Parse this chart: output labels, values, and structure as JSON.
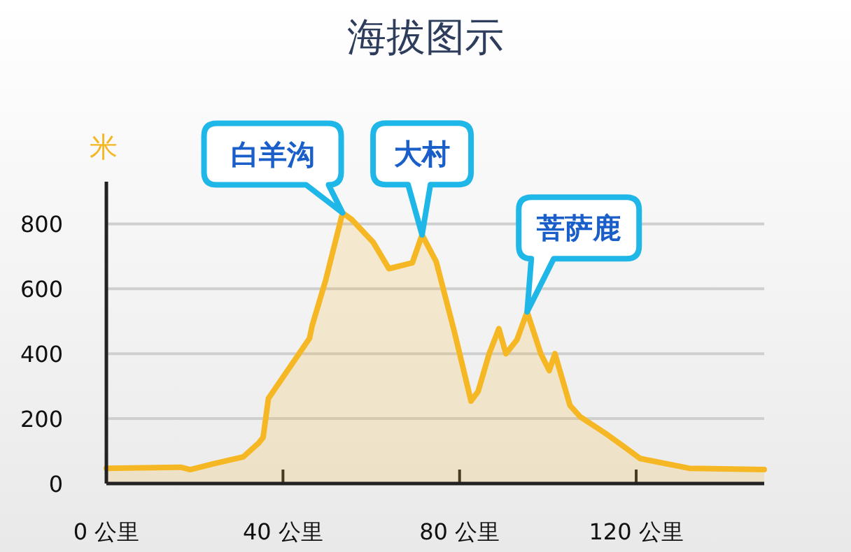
{
  "chart_data": {
    "type": "area",
    "title": "海拔图示",
    "ylabel": "米",
    "x": [
      0,
      17,
      19,
      24,
      31,
      34.5,
      35.5,
      36.7,
      46,
      46.6,
      49.7,
      53.5,
      55.6,
      60.4,
      64,
      69.3,
      71.5,
      74.7,
      78.8,
      82.6,
      84.2,
      86.7,
      88.9,
      90.5,
      93,
      95.3,
      98.4,
      100.3,
      101.6,
      105,
      107.3,
      113,
      117.4,
      120.9,
      132,
      149
    ],
    "series": [
      {
        "color": "#f5b824",
        "values": [
          47,
          50,
          43,
          60,
          82,
          125,
          142,
          262,
          447,
          486,
          628,
          834,
          813,
          744,
          662,
          680,
          766,
          684,
          469,
          254,
          284,
          400,
          477,
          400,
          443,
          529,
          400,
          348,
          400,
          241,
          206,
          155,
          112,
          77,
          47,
          43
        ]
      }
    ],
    "xlim": [
      0,
      149
    ],
    "ylim": [
      0,
      930
    ],
    "xticks": [
      {
        "value": 0,
        "label": "0 公里"
      },
      {
        "value": 40,
        "label": "40 公里"
      },
      {
        "value": 80,
        "label": "80 公里"
      },
      {
        "value": 120,
        "label": "120 公里"
      }
    ],
    "yticks": [
      0,
      200,
      400,
      600,
      800
    ],
    "grid": "y",
    "annotations": [
      {
        "text": "白羊沟",
        "x": 53.5,
        "y": 834
      },
      {
        "text": "大村",
        "x": 71.5,
        "y": 766
      },
      {
        "text": "菩萨鹿",
        "x": 95.3,
        "y": 529
      }
    ]
  }
}
